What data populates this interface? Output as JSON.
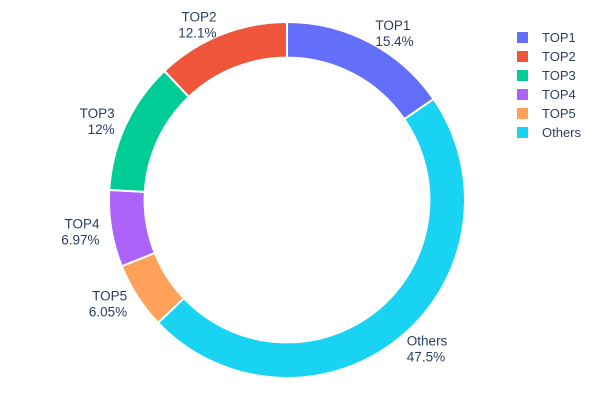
{
  "figure": {
    "background": "#ffffff",
    "text_color": "#2a3f5f",
    "separator_color": "#ffffff"
  },
  "chart_data": {
    "type": "pie",
    "hole": 0.8,
    "labels": [
      "TOP1",
      "TOP2",
      "TOP3",
      "TOP4",
      "TOP5",
      "Others"
    ],
    "values": [
      15.4,
      12.1,
      12,
      6.97,
      6.05,
      47.5
    ],
    "value_labels": [
      "15.4%",
      "12.1%",
      "12%",
      "6.97%",
      "6.05%",
      "47.5%"
    ],
    "colors": [
      "#636EFA",
      "#EF553B",
      "#00CC96",
      "#AB63FA",
      "#FFA15A",
      "#19D3F3"
    ],
    "clockwise_draw_order": [
      0,
      5,
      4,
      3,
      2,
      1
    ],
    "labels_position": "outside",
    "legend_position": "top-right"
  },
  "legend": {
    "items": [
      {
        "label": "TOP1",
        "color": "#636EFA"
      },
      {
        "label": "TOP2",
        "color": "#EF553B"
      },
      {
        "label": "TOP3",
        "color": "#00CC96"
      },
      {
        "label": "TOP4",
        "color": "#AB63FA"
      },
      {
        "label": "TOP5",
        "color": "#FFA15A"
      },
      {
        "label": "Others",
        "color": "#19D3F3"
      }
    ]
  }
}
